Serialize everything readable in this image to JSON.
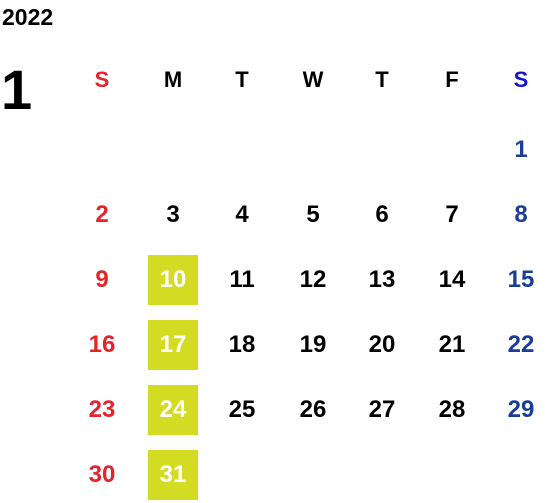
{
  "year": "2022",
  "month": "1",
  "weekdays": [
    "S",
    "M",
    "T",
    "W",
    "T",
    "F",
    "S"
  ],
  "weeks": [
    [
      null,
      null,
      null,
      null,
      null,
      null,
      1
    ],
    [
      2,
      3,
      4,
      5,
      6,
      7,
      8
    ],
    [
      9,
      10,
      11,
      12,
      13,
      14,
      15
    ],
    [
      16,
      17,
      18,
      19,
      20,
      21,
      22
    ],
    [
      23,
      24,
      25,
      26,
      27,
      28,
      29
    ],
    [
      30,
      31,
      null,
      null,
      null,
      null,
      null
    ]
  ],
  "highlighted": [
    10,
    17,
    24,
    31
  ],
  "colors": {
    "sunday": "#e4232a",
    "saturday": "#1b3d94",
    "saturday_header": "#1515d6",
    "weekday": "#000000",
    "highlight": "#d3dc22",
    "highlight_text": "#ffffff"
  }
}
